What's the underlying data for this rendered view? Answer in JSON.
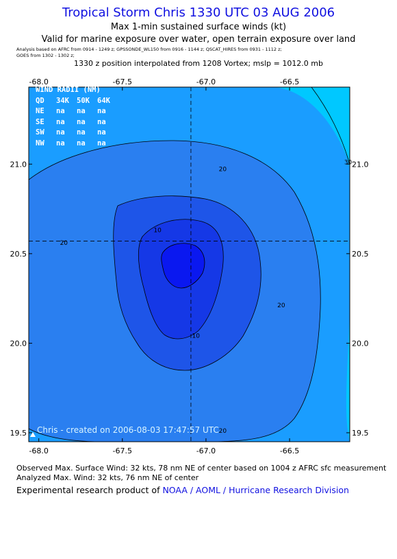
{
  "header": {
    "title": "Tropical Storm Chris 1330 UTC 03 AUG 2006",
    "subtitle": "Max 1-min sustained surface winds (kt)",
    "valid_line": "Valid for marine exposure over water, open terrain exposure over land",
    "analysis_line1": "Analysis based on  AFRC from 0914 - 1249 z;  GPSSONDE_WL150 from 0916 - 1144 z;  QSCAT_HIRES from 0931 - 1112 z;",
    "analysis_line2": "GOES from 1302 - 1302 z;",
    "position_line": "1330 z position interpolated from 1208 Vortex; mslp = 1012.0 mb"
  },
  "wind_radii": {
    "title": "WIND RADII (NM)",
    "header": [
      "QD",
      "34K",
      "50K",
      "64K"
    ],
    "rows": [
      [
        "NE",
        "na",
        "na",
        "na"
      ],
      [
        "SE",
        "na",
        "na",
        "na"
      ],
      [
        "SW",
        "na",
        "na",
        "na"
      ],
      [
        "NW",
        "na",
        "na",
        "na"
      ]
    ]
  },
  "watermark": "Chris - created on 2006-08-03 17:47:57 UTC",
  "footer": {
    "observed": "Observed Max. Surface Wind: 32 kts, 78 nm NE of center based on 1004 z AFRC sfc measurement",
    "analyzed": "Analyzed Max. Wind: 32 kts, 76 nm NE of center",
    "credit_prefix": "Experimental research product of ",
    "credit_link": "NOAA / AOML / Hurricane Research Division"
  },
  "colors": {
    "level_lt20": "#1a9dff",
    "level_20_25": "#2a7ff0",
    "level_25_30": "#1e55e8",
    "level_30_35": "#1538e6",
    "level_35_40": "#0a18f0",
    "level_gt30_outer": "#00c8ff",
    "title": "#1010e0"
  },
  "chart_data": {
    "type": "contour",
    "x_ticks": [
      "-68.0",
      "-67.5",
      "-67.0",
      "-66.5"
    ],
    "x_tick_values": [
      -68.0,
      -67.5,
      -67.0,
      -66.5
    ],
    "y_ticks": [
      "21.0",
      "20.5",
      "20.0",
      "19.5"
    ],
    "y_tick_values": [
      21.0,
      20.5,
      20.0,
      19.5
    ],
    "xlim": [
      -68.06,
      -66.14
    ],
    "ylim": [
      19.45,
      21.43
    ],
    "center": {
      "lon": -67.09,
      "lat": 20.57
    },
    "contours": [
      {
        "level": "30",
        "lon": -66.15,
        "lat": 21.0
      },
      {
        "level": "20",
        "lon": -66.9,
        "lat": 20.96
      },
      {
        "level": "20",
        "lon": -67.85,
        "lat": 20.55
      },
      {
        "level": "20",
        "lon": -66.55,
        "lat": 20.2
      },
      {
        "level": "20",
        "lon": -66.9,
        "lat": 19.5
      },
      {
        "level": "10",
        "lon": -67.29,
        "lat": 20.62
      },
      {
        "level": "10",
        "lon": -67.06,
        "lat": 20.03
      }
    ]
  }
}
